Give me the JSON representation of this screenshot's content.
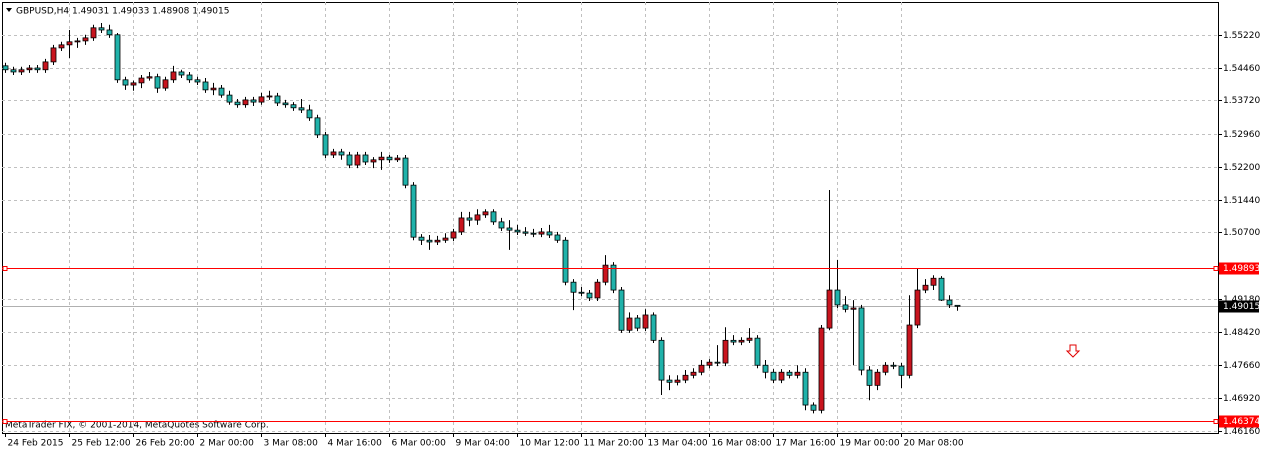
{
  "chart_data": {
    "type": "candlestick",
    "title": "GBPUSD,H4  1.49031 1.49033 1.48908 1.49015",
    "footer": "MetaTrader FIX, © 2001-2014, MetaQuotes Software Corp.",
    "up_color": "#c8141e",
    "down_color": "#20b2aa",
    "outline_color": "#000000",
    "grid": true,
    "ylim": [
      1.4611,
      1.5597
    ],
    "yticks": [
      {
        "value": 1.5522,
        "label": "1.55220"
      },
      {
        "value": 1.5446,
        "label": "1.54460"
      },
      {
        "value": 1.5372,
        "label": "1.53720"
      },
      {
        "value": 1.5296,
        "label": "1.52960"
      },
      {
        "value": 1.522,
        "label": "1.52200"
      },
      {
        "value": 1.5144,
        "label": "1.51440"
      },
      {
        "value": 1.507,
        "label": "1.50700"
      },
      {
        "value": 1.4918,
        "label": "1.49180"
      },
      {
        "value": 1.4842,
        "label": "1.48420"
      },
      {
        "value": 1.4766,
        "label": "1.47660"
      },
      {
        "value": 1.4692,
        "label": "1.46920"
      },
      {
        "value": 1.4616,
        "label": "1.46160"
      }
    ],
    "levels": [
      {
        "value": 1.49893,
        "color": "#ff0000"
      },
      {
        "value": 1.46374,
        "color": "#ff0000"
      }
    ],
    "current_price": {
      "value": 1.49015,
      "color": "#000000"
    },
    "categories": [
      "24 Feb 2015",
      null,
      null,
      null,
      null,
      null,
      null,
      null,
      "25 Feb 12:00",
      null,
      null,
      null,
      null,
      null,
      null,
      null,
      "26 Feb 20:00",
      null,
      null,
      null,
      null,
      null,
      null,
      null,
      "2 Mar 00:00",
      null,
      null,
      null,
      null,
      null,
      null,
      null,
      "3 Mar 08:00",
      null,
      null,
      null,
      null,
      null,
      null,
      null,
      "4 Mar 16:00",
      null,
      null,
      null,
      null,
      null,
      null,
      null,
      "6 Mar 00:00",
      null,
      null,
      null,
      null,
      null,
      null,
      null,
      "9 Mar 04:00",
      null,
      null,
      null,
      null,
      null,
      null,
      null,
      "10 Mar 12:00",
      null,
      null,
      null,
      null,
      null,
      null,
      null,
      "11 Mar 20:00",
      null,
      null,
      null,
      null,
      null,
      null,
      null,
      "13 Mar 04:00",
      null,
      null,
      null,
      null,
      null,
      null,
      null,
      "16 Mar 08:00",
      null,
      null,
      null,
      null,
      null,
      null,
      null,
      "17 Mar 16:00",
      null,
      null,
      null,
      null,
      null,
      null,
      null,
      "19 Mar 00:00",
      null,
      null,
      null,
      null,
      null,
      null,
      null,
      "20 Mar 08:00",
      null,
      null,
      null,
      null,
      null,
      null,
      null
    ],
    "candles": [
      [
        1.5451,
        1.5458,
        1.5435,
        1.5442
      ],
      [
        1.5442,
        1.5449,
        1.543,
        1.5437
      ],
      [
        1.5437,
        1.5449,
        1.543,
        1.5442
      ],
      [
        1.5442,
        1.5453,
        1.5435,
        1.5446
      ],
      [
        1.5446,
        1.5453,
        1.5435,
        1.5442
      ],
      [
        1.5442,
        1.5467,
        1.5435,
        1.546
      ],
      [
        1.546,
        1.5499,
        1.5453,
        1.5492
      ],
      [
        1.5492,
        1.5506,
        1.5485,
        1.5499
      ],
      [
        1.5499,
        1.5533,
        1.5469,
        1.5506
      ],
      [
        1.5506,
        1.5515,
        1.5492,
        1.5508
      ],
      [
        1.5508,
        1.5522,
        1.5499,
        1.5515
      ],
      [
        1.5515,
        1.5545,
        1.5508,
        1.5538
      ],
      [
        1.5538,
        1.5549,
        1.5526,
        1.5533
      ],
      [
        1.5533,
        1.5545,
        1.5515,
        1.5522
      ],
      [
        1.5522,
        1.5526,
        1.5412,
        1.5419
      ],
      [
        1.5419,
        1.5426,
        1.5396,
        1.5407
      ],
      [
        1.5407,
        1.5417,
        1.5394,
        1.5412
      ],
      [
        1.5412,
        1.543,
        1.54,
        1.5423
      ],
      [
        1.5423,
        1.5437,
        1.5417,
        1.5426
      ],
      [
        1.5426,
        1.5433,
        1.5389,
        1.54
      ],
      [
        1.54,
        1.5426,
        1.5394,
        1.5419
      ],
      [
        1.5419,
        1.5451,
        1.5412,
        1.5437
      ],
      [
        1.5437,
        1.5442,
        1.5423,
        1.543
      ],
      [
        1.543,
        1.5437,
        1.5412,
        1.5419
      ],
      [
        1.5419,
        1.5426,
        1.5407,
        1.5414
      ],
      [
        1.5414,
        1.5423,
        1.5389,
        1.5396
      ],
      [
        1.5396,
        1.5412,
        1.5384,
        1.54
      ],
      [
        1.54,
        1.5407,
        1.5378,
        1.5384
      ],
      [
        1.5384,
        1.5394,
        1.5362,
        1.5368
      ],
      [
        1.5368,
        1.5375,
        1.5355,
        1.5362
      ],
      [
        1.5362,
        1.538,
        1.5355,
        1.5373
      ],
      [
        1.5373,
        1.538,
        1.5359,
        1.5368
      ],
      [
        1.5368,
        1.5389,
        1.5362,
        1.538
      ],
      [
        1.538,
        1.5394,
        1.5373,
        1.5382
      ],
      [
        1.5382,
        1.5389,
        1.5359,
        1.5366
      ],
      [
        1.5366,
        1.5373,
        1.5355,
        1.5362
      ],
      [
        1.5362,
        1.5368,
        1.5348,
        1.5355
      ],
      [
        1.5355,
        1.5375,
        1.5343,
        1.535
      ],
      [
        1.535,
        1.5362,
        1.5325,
        1.5332
      ],
      [
        1.5332,
        1.5339,
        1.5286,
        1.5293
      ],
      [
        1.5293,
        1.53,
        1.524,
        1.5247
      ],
      [
        1.5247,
        1.5261,
        1.524,
        1.5254
      ],
      [
        1.5254,
        1.5261,
        1.5236,
        1.5247
      ],
      [
        1.5247,
        1.5254,
        1.5217,
        1.5224
      ],
      [
        1.5224,
        1.5254,
        1.5217,
        1.5247
      ],
      [
        1.5247,
        1.5254,
        1.5224,
        1.5231
      ],
      [
        1.5231,
        1.5242,
        1.5217,
        1.5236
      ],
      [
        1.5236,
        1.5254,
        1.5213,
        1.5242
      ],
      [
        1.5242,
        1.5247,
        1.5229,
        1.5236
      ],
      [
        1.5236,
        1.5247,
        1.5231,
        1.524
      ],
      [
        1.524,
        1.5247,
        1.5171,
        1.5178
      ],
      [
        1.5178,
        1.5185,
        1.5052,
        1.5059
      ],
      [
        1.5059,
        1.5066,
        1.5041,
        1.5052
      ],
      [
        1.5052,
        1.5064,
        1.503,
        1.5048
      ],
      [
        1.5048,
        1.5062,
        1.5041,
        1.5052
      ],
      [
        1.5052,
        1.5068,
        1.5046,
        1.5057
      ],
      [
        1.5057,
        1.5078,
        1.505,
        1.5071
      ],
      [
        1.5071,
        1.5117,
        1.5064,
        1.5103
      ],
      [
        1.5103,
        1.5117,
        1.5084,
        1.5098
      ],
      [
        1.5098,
        1.5123,
        1.5087,
        1.511
      ],
      [
        1.511,
        1.5123,
        1.5103,
        1.5117
      ],
      [
        1.5117,
        1.5123,
        1.5087,
        1.5094
      ],
      [
        1.5094,
        1.5103,
        1.5073,
        1.508
      ],
      [
        1.508,
        1.5098,
        1.503,
        1.5075
      ],
      [
        1.5075,
        1.5087,
        1.5064,
        1.5071
      ],
      [
        1.5071,
        1.5082,
        1.5062,
        1.5068
      ],
      [
        1.5068,
        1.5078,
        1.5059,
        1.5066
      ],
      [
        1.5066,
        1.508,
        1.5059,
        1.5071
      ],
      [
        1.5071,
        1.5087,
        1.5057,
        1.5064
      ],
      [
        1.5064,
        1.5071,
        1.5046,
        1.5052
      ],
      [
        1.5052,
        1.5059,
        1.4949,
        1.4956
      ],
      [
        1.4956,
        1.4963,
        1.4892,
        1.4933
      ],
      [
        1.4933,
        1.4945,
        1.4924,
        1.4931
      ],
      [
        1.4931,
        1.4938,
        1.4913,
        1.492
      ],
      [
        1.492,
        1.4963,
        1.4913,
        1.4956
      ],
      [
        1.4956,
        1.5018,
        1.4949,
        1.4995
      ],
      [
        1.4995,
        1.5002,
        1.4931,
        1.4938
      ],
      [
        1.4938,
        1.4945,
        1.484,
        1.4846
      ],
      [
        1.4846,
        1.4887,
        1.484,
        1.4874
      ],
      [
        1.4874,
        1.4881,
        1.4844,
        1.4851
      ],
      [
        1.4851,
        1.4894,
        1.4844,
        1.4881
      ],
      [
        1.4881,
        1.4887,
        1.4817,
        1.4823
      ],
      [
        1.4823,
        1.483,
        1.4698,
        1.4732
      ],
      [
        1.4732,
        1.4743,
        1.4709,
        1.4727
      ],
      [
        1.4727,
        1.4743,
        1.472,
        1.4732
      ],
      [
        1.4732,
        1.4755,
        1.4725,
        1.4743
      ],
      [
        1.4743,
        1.4759,
        1.4736,
        1.475
      ],
      [
        1.475,
        1.4778,
        1.4743,
        1.4766
      ],
      [
        1.4766,
        1.478,
        1.4759,
        1.4773
      ],
      [
        1.4773,
        1.4812,
        1.4764,
        1.4771
      ],
      [
        1.4771,
        1.4853,
        1.4764,
        1.4823
      ],
      [
        1.4823,
        1.4835,
        1.4812,
        1.4819
      ],
      [
        1.4819,
        1.483,
        1.4812,
        1.4823
      ],
      [
        1.4823,
        1.4851,
        1.4817,
        1.4828
      ],
      [
        1.4828,
        1.4835,
        1.4759,
        1.4766
      ],
      [
        1.4766,
        1.4778,
        1.4736,
        1.475
      ],
      [
        1.475,
        1.4757,
        1.4725,
        1.4732
      ],
      [
        1.4732,
        1.4757,
        1.4725,
        1.475
      ],
      [
        1.475,
        1.4755,
        1.4736,
        1.4743
      ],
      [
        1.4743,
        1.4766,
        1.4736,
        1.475
      ],
      [
        1.475,
        1.4759,
        1.4663,
        1.4675
      ],
      [
        1.4675,
        1.4681,
        1.4656,
        1.4663
      ],
      [
        1.4663,
        1.4858,
        1.4656,
        1.4851
      ],
      [
        1.4851,
        1.5167,
        1.4846,
        1.4938
      ],
      [
        1.4938,
        1.5007,
        1.4897,
        1.4904
      ],
      [
        1.4904,
        1.4924,
        1.4887,
        1.4894
      ],
      [
        1.4894,
        1.4915,
        1.4766,
        1.4897
      ],
      [
        1.4897,
        1.4904,
        1.4743,
        1.4755
      ],
      [
        1.4755,
        1.4764,
        1.4686,
        1.472
      ],
      [
        1.472,
        1.4757,
        1.4709,
        1.475
      ],
      [
        1.475,
        1.4773,
        1.4743,
        1.4766
      ],
      [
        1.4766,
        1.4773,
        1.4757,
        1.4764
      ],
      [
        1.4764,
        1.4771,
        1.4714,
        1.4743
      ],
      [
        1.4743,
        1.4926,
        1.4736,
        1.4858
      ],
      [
        1.4858,
        1.4988,
        1.4851,
        1.4938
      ],
      [
        1.4938,
        1.4963,
        1.4931,
        1.4949
      ],
      [
        1.4949,
        1.4972,
        1.4938,
        1.4965
      ],
      [
        1.4965,
        1.497,
        1.4913,
        1.4915
      ],
      [
        1.4915,
        1.4926,
        1.4897,
        1.4904
      ],
      [
        1.49031,
        1.49033,
        1.48908,
        1.49015
      ]
    ]
  }
}
